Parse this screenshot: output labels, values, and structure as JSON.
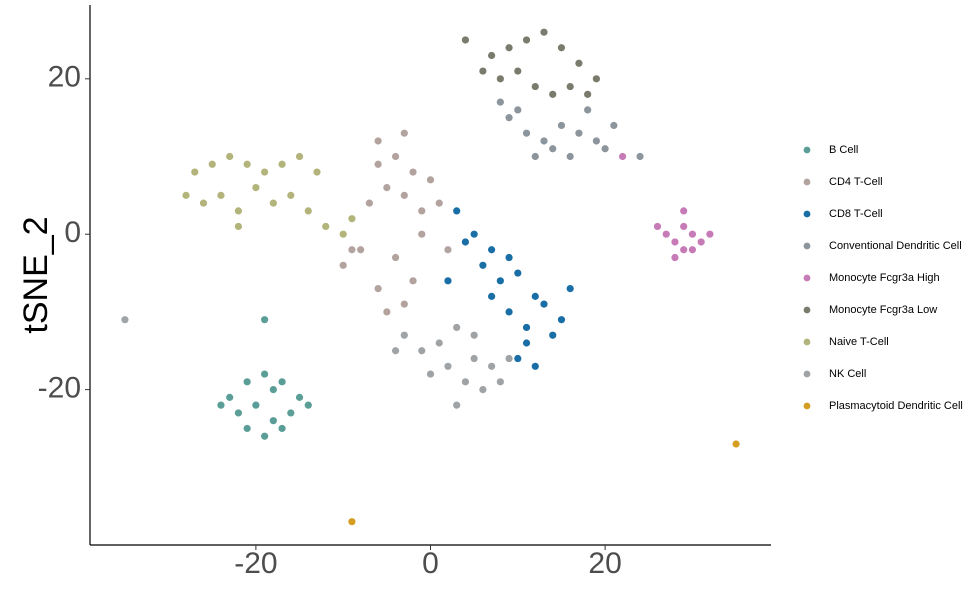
{
  "chart_data": {
    "type": "scatter",
    "y_label": "tSNE_2",
    "xlim": [
      -39,
      39
    ],
    "ylim": [
      -40,
      29.5
    ],
    "xticks": [
      -20,
      0,
      20
    ],
    "yticks": [
      -20,
      0,
      20
    ],
    "grid": false,
    "legend": "right",
    "series": [
      {
        "name": "B Cell",
        "color": "#5b9e97",
        "x": [
          -23,
          -21,
          -19,
          -17,
          -15,
          -22,
          -20,
          -18,
          -16,
          -21,
          -19,
          -17,
          -24,
          -14,
          -19,
          -18
        ],
        "values": [
          -21,
          -19,
          -18,
          -19,
          -21,
          -23,
          -22,
          -24,
          -23,
          -25,
          -26,
          -25,
          -22,
          -22,
          -11,
          -20
        ]
      },
      {
        "name": "CD4 T-Cell",
        "color": "#b3a39f",
        "x": [
          -6,
          -4,
          -2,
          0,
          -3,
          -1,
          -5,
          -7,
          -9,
          -4,
          -2,
          -6,
          -3,
          -10,
          -1,
          -5,
          -3,
          -6,
          -8,
          2,
          1
        ],
        "values": [
          9,
          10,
          8,
          7,
          5,
          3,
          6,
          4,
          -2,
          -3,
          -6,
          -7,
          -9,
          -4,
          0,
          -10,
          13,
          12,
          -2,
          -2,
          4
        ]
      },
      {
        "name": "CD8 T-Cell",
        "color": "#1a6ea6",
        "x": [
          3,
          5,
          7,
          4,
          6,
          8,
          10,
          12,
          9,
          11,
          13,
          15,
          7,
          9,
          11,
          14,
          10,
          12,
          16,
          2
        ],
        "values": [
          3,
          0,
          -2,
          -1,
          -4,
          -6,
          -5,
          -8,
          -10,
          -12,
          -9,
          -11,
          -8,
          -3,
          -14,
          -13,
          -16,
          -17,
          -7,
          -6
        ]
      },
      {
        "name": "Conventional Dendritic Cell",
        "color": "#8c949c",
        "x": [
          9,
          11,
          13,
          15,
          17,
          19,
          21,
          12,
          14,
          16,
          8,
          10,
          18,
          20,
          24
        ],
        "values": [
          15,
          13,
          12,
          14,
          13,
          12,
          14,
          10,
          11,
          10,
          17,
          16,
          16,
          11,
          10
        ]
      },
      {
        "name": "Monocyte Fcgr3a High",
        "color": "#c67bb7",
        "x": [
          27,
          28,
          29,
          30,
          31,
          29,
          28,
          30,
          32,
          26,
          29,
          22
        ],
        "values": [
          0,
          -1,
          -2,
          0,
          -1,
          1,
          -3,
          -2,
          0,
          1,
          3,
          10
        ]
      },
      {
        "name": "Monocyte Fcgr3a Low",
        "color": "#7b7b6d",
        "x": [
          7,
          9,
          11,
          13,
          15,
          17,
          19,
          8,
          10,
          12,
          14,
          16,
          18,
          6,
          4
        ],
        "values": [
          23,
          24,
          25,
          26,
          24,
          22,
          20,
          20,
          21,
          19,
          18,
          19,
          18,
          21,
          25
        ]
      },
      {
        "name": "Naive T-Cell",
        "color": "#b3b47b",
        "x": [
          -27,
          -25,
          -23,
          -21,
          -19,
          -17,
          -15,
          -13,
          -26,
          -24,
          -22,
          -20,
          -18,
          -16,
          -14,
          -12,
          -10,
          -9,
          -22,
          -28
        ],
        "values": [
          8,
          9,
          10,
          9,
          8,
          9,
          10,
          8,
          4,
          5,
          3,
          6,
          4,
          5,
          3,
          1,
          0,
          2,
          1,
          5
        ]
      },
      {
        "name": "NK Cell",
        "color": "#a0a3a6",
        "x": [
          -3,
          -1,
          1,
          3,
          5,
          7,
          8,
          4,
          6,
          2,
          0,
          -4,
          9,
          5,
          3,
          -35
        ],
        "values": [
          -13,
          -15,
          -14,
          -12,
          -16,
          -17,
          -19,
          -19,
          -20,
          -17,
          -18,
          -15,
          -16,
          -13,
          -22,
          -11
        ]
      },
      {
        "name": "Plasmacytoid Dendritic Cell",
        "color": "#d49e22",
        "x": [
          -9,
          35
        ],
        "values": [
          -37,
          -27
        ]
      }
    ]
  }
}
